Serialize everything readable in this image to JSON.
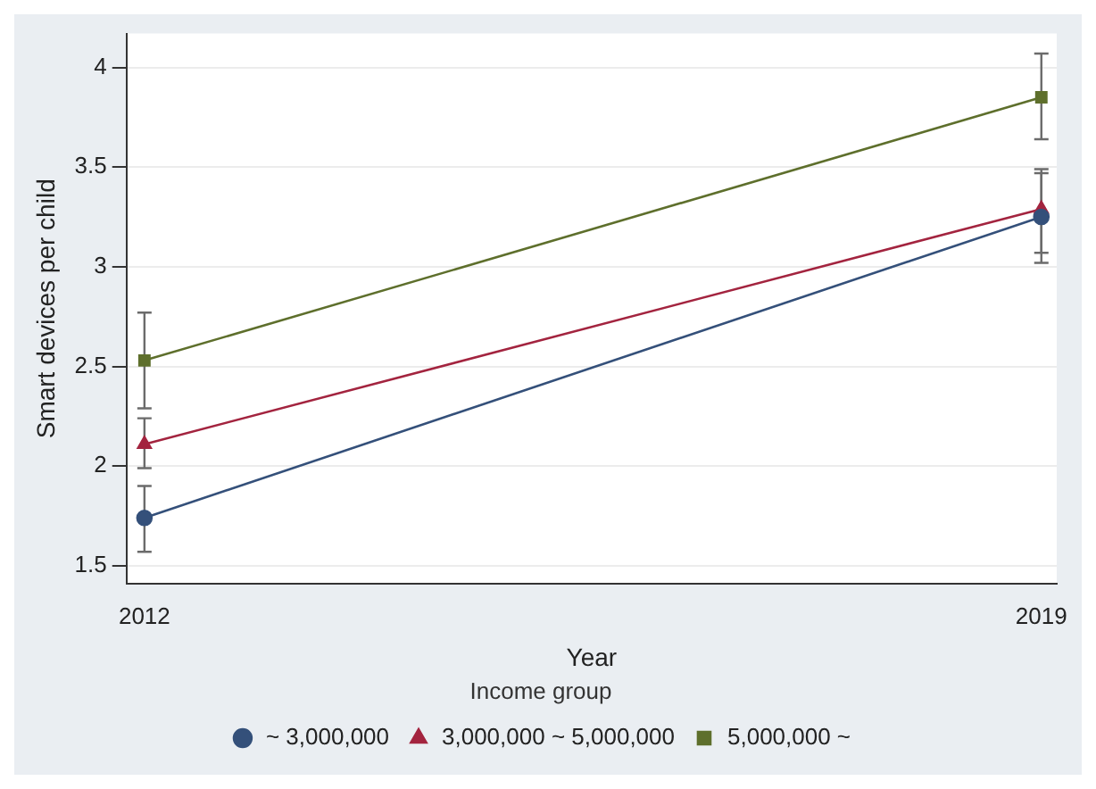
{
  "chart_data": {
    "type": "line",
    "xlabel": "Year",
    "ylabel": "Smart devices per child",
    "legend_title": "Income group",
    "x": [
      2012,
      2019
    ],
    "xlim": [
      2011.86,
      2019.12
    ],
    "xticks": [
      2012,
      2019
    ],
    "ylim": [
      1.41,
      4.17
    ],
    "yticks": [
      1.5,
      2,
      2.5,
      3,
      3.5,
      4
    ],
    "grid": "y",
    "legend": "bottom",
    "series": [
      {
        "name": "~ 3,000,000",
        "color": "#34507a",
        "marker": "circle",
        "values": [
          1.74,
          3.25
        ],
        "errors": [
          [
            1.57,
            1.9
          ],
          [
            3.02,
            3.47
          ]
        ]
      },
      {
        "name": "3,000,000 ~ 5,000,000",
        "color": "#a3243f",
        "marker": "triangle",
        "values": [
          2.11,
          3.29
        ],
        "errors": [
          [
            1.99,
            2.24
          ],
          [
            3.07,
            3.49
          ]
        ]
      },
      {
        "name": "5,000,000 ~",
        "color": "#5e6f2c",
        "marker": "square",
        "values": [
          2.53,
          3.85
        ],
        "errors": [
          [
            2.29,
            2.77
          ],
          [
            3.64,
            4.07
          ]
        ]
      }
    ]
  }
}
